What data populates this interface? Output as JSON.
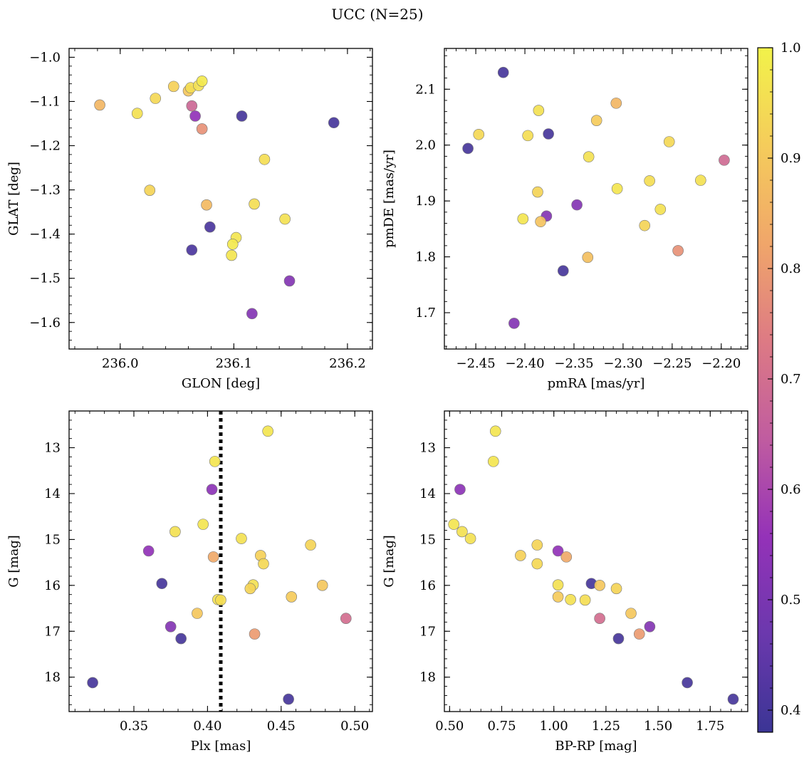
{
  "suptitle": "UCC (N=25)",
  "colorbar": {
    "range": [
      0.38,
      1.0
    ],
    "ticks": [
      0.4,
      0.5,
      0.6,
      0.7,
      0.8,
      0.9,
      1.0
    ],
    "tick_labels": [
      "0.4",
      "0.5",
      "0.6",
      "0.7",
      "0.8",
      "0.9",
      "1.0"
    ],
    "colormap": "plasma-like",
    "stops": [
      "#3b3595",
      "#6b38ad",
      "#9432b8",
      "#c05ca0",
      "#dd7a84",
      "#f0a66a",
      "#f5cc5b",
      "#f2f24a"
    ]
  },
  "chart_data": [
    {
      "type": "scatter",
      "id": "glon-glat",
      "xlabel": "GLON [deg]",
      "ylabel": "GLAT [deg]",
      "xlim": [
        235.955,
        236.222
      ],
      "ylim": [
        -1.66,
        -0.98
      ],
      "xticks": [
        236.0,
        236.1,
        236.2
      ],
      "xtick_labels": [
        "236.0",
        "236.1",
        "236.2"
      ],
      "yticks": [
        -1.0,
        -1.1,
        -1.2,
        -1.3,
        -1.4,
        -1.5,
        -1.6
      ],
      "ytick_labels": [
        "−1.0",
        "−1.1",
        "−1.2",
        "−1.3",
        "−1.4",
        "−1.5",
        "−1.6"
      ],
      "points": [
        {
          "x": 235.982,
          "y": -1.108,
          "c": 0.86
        },
        {
          "x": 236.015,
          "y": -1.127,
          "c": 0.96
        },
        {
          "x": 236.031,
          "y": -1.093,
          "c": 0.94
        },
        {
          "x": 236.047,
          "y": -1.066,
          "c": 0.92
        },
        {
          "x": 236.06,
          "y": -1.076,
          "c": 0.9
        },
        {
          "x": 236.062,
          "y": -1.069,
          "c": 0.95
        },
        {
          "x": 236.069,
          "y": -1.064,
          "c": 0.96
        },
        {
          "x": 236.072,
          "y": -1.054,
          "c": 0.98
        },
        {
          "x": 236.063,
          "y": -1.11,
          "c": 0.68
        },
        {
          "x": 236.066,
          "y": -1.133,
          "c": 0.55
        },
        {
          "x": 236.072,
          "y": -1.162,
          "c": 0.78
        },
        {
          "x": 236.107,
          "y": -1.133,
          "c": 0.4
        },
        {
          "x": 236.188,
          "y": -1.148,
          "c": 0.4
        },
        {
          "x": 236.127,
          "y": -1.231,
          "c": 0.95
        },
        {
          "x": 236.026,
          "y": -1.301,
          "c": 0.93
        },
        {
          "x": 236.076,
          "y": -1.334,
          "c": 0.87
        },
        {
          "x": 236.118,
          "y": -1.332,
          "c": 0.95
        },
        {
          "x": 236.145,
          "y": -1.366,
          "c": 0.96
        },
        {
          "x": 236.079,
          "y": -1.384,
          "c": 0.41
        },
        {
          "x": 236.063,
          "y": -1.436,
          "c": 0.41
        },
        {
          "x": 236.102,
          "y": -1.408,
          "c": 0.97
        },
        {
          "x": 236.099,
          "y": -1.423,
          "c": 0.98
        },
        {
          "x": 236.098,
          "y": -1.448,
          "c": 0.97
        },
        {
          "x": 236.149,
          "y": -1.506,
          "c": 0.52
        },
        {
          "x": 236.116,
          "y": -1.58,
          "c": 0.52
        }
      ]
    },
    {
      "type": "scatter",
      "id": "pmra-pmde",
      "xlabel": "pmRA [mas/yr]",
      "ylabel": "pmDE [mas/yr]",
      "xlim": [
        -2.482,
        -2.173
      ],
      "ylim": [
        1.635,
        2.173
      ],
      "xticks": [
        -2.45,
        -2.4,
        -2.35,
        -2.3,
        -2.25,
        -2.2
      ],
      "xtick_labels": [
        "−2.45",
        "−2.40",
        "−2.35",
        "−2.30",
        "−2.25",
        "−2.20"
      ],
      "yticks": [
        1.7,
        1.8,
        1.9,
        2.0,
        2.1
      ],
      "ytick_labels": [
        "1.7",
        "1.8",
        "1.9",
        "2.0",
        "2.1"
      ],
      "points": [
        {
          "x": -2.422,
          "y": 2.13,
          "c": 0.4
        },
        {
          "x": -2.307,
          "y": 2.075,
          "c": 0.86
        },
        {
          "x": -2.386,
          "y": 2.062,
          "c": 0.96
        },
        {
          "x": -2.327,
          "y": 2.044,
          "c": 0.91
        },
        {
          "x": -2.447,
          "y": 2.019,
          "c": 0.94
        },
        {
          "x": -2.397,
          "y": 2.017,
          "c": 0.95
        },
        {
          "x": -2.376,
          "y": 2.02,
          "c": 0.4
        },
        {
          "x": -2.253,
          "y": 2.006,
          "c": 0.94
        },
        {
          "x": -2.458,
          "y": 1.994,
          "c": 0.4
        },
        {
          "x": -2.335,
          "y": 1.979,
          "c": 0.96
        },
        {
          "x": -2.197,
          "y": 1.973,
          "c": 0.69
        },
        {
          "x": -2.221,
          "y": 1.937,
          "c": 0.96
        },
        {
          "x": -2.273,
          "y": 1.936,
          "c": 0.95
        },
        {
          "x": -2.306,
          "y": 1.922,
          "c": 0.97
        },
        {
          "x": -2.387,
          "y": 1.916,
          "c": 0.93
        },
        {
          "x": -2.347,
          "y": 1.893,
          "c": 0.52
        },
        {
          "x": -2.262,
          "y": 1.885,
          "c": 0.96
        },
        {
          "x": -2.378,
          "y": 1.873,
          "c": 0.52
        },
        {
          "x": -2.402,
          "y": 1.868,
          "c": 0.97
        },
        {
          "x": -2.384,
          "y": 1.863,
          "c": 0.89
        },
        {
          "x": -2.278,
          "y": 1.856,
          "c": 0.93
        },
        {
          "x": -2.244,
          "y": 1.811,
          "c": 0.78
        },
        {
          "x": -2.336,
          "y": 1.799,
          "c": 0.88
        },
        {
          "x": -2.361,
          "y": 1.775,
          "c": 0.4
        },
        {
          "x": -2.411,
          "y": 1.681,
          "c": 0.52
        }
      ]
    },
    {
      "type": "scatter",
      "id": "plx-g",
      "xlabel": "Plx [mas]",
      "ylabel": "G [mag]",
      "xlim": [
        0.306,
        0.512
      ],
      "ylim": [
        18.75,
        12.2
      ],
      "y_inverted": true,
      "xticks": [
        0.35,
        0.4,
        0.45,
        0.5
      ],
      "xtick_labels": [
        "0.35",
        "0.40",
        "0.45",
        "0.50"
      ],
      "yticks": [
        13,
        14,
        15,
        16,
        17,
        18
      ],
      "ytick_labels": [
        "13",
        "14",
        "15",
        "16",
        "17",
        "18"
      ],
      "vline": {
        "x": 0.409,
        "style": "dotted"
      },
      "points": [
        {
          "x": 0.441,
          "y": 12.64,
          "c": 0.97
        },
        {
          "x": 0.405,
          "y": 13.3,
          "c": 0.97
        },
        {
          "x": 0.403,
          "y": 13.91,
          "c": 0.54
        },
        {
          "x": 0.397,
          "y": 14.67,
          "c": 0.97
        },
        {
          "x": 0.378,
          "y": 14.83,
          "c": 0.96
        },
        {
          "x": 0.423,
          "y": 14.98,
          "c": 0.96
        },
        {
          "x": 0.47,
          "y": 15.12,
          "c": 0.93
        },
        {
          "x": 0.36,
          "y": 15.25,
          "c": 0.55
        },
        {
          "x": 0.436,
          "y": 15.35,
          "c": 0.92
        },
        {
          "x": 0.404,
          "y": 15.38,
          "c": 0.83
        },
        {
          "x": 0.438,
          "y": 15.53,
          "c": 0.94
        },
        {
          "x": 0.369,
          "y": 15.96,
          "c": 0.4
        },
        {
          "x": 0.478,
          "y": 16.0,
          "c": 0.9
        },
        {
          "x": 0.431,
          "y": 15.99,
          "c": 0.96
        },
        {
          "x": 0.429,
          "y": 16.07,
          "c": 0.93
        },
        {
          "x": 0.457,
          "y": 16.25,
          "c": 0.91
        },
        {
          "x": 0.407,
          "y": 16.31,
          "c": 0.96
        },
        {
          "x": 0.409,
          "y": 16.32,
          "c": 0.95
        },
        {
          "x": 0.393,
          "y": 16.61,
          "c": 0.9
        },
        {
          "x": 0.494,
          "y": 16.72,
          "c": 0.7
        },
        {
          "x": 0.375,
          "y": 16.9,
          "c": 0.52
        },
        {
          "x": 0.432,
          "y": 17.06,
          "c": 0.8
        },
        {
          "x": 0.382,
          "y": 17.16,
          "c": 0.4
        },
        {
          "x": 0.322,
          "y": 18.12,
          "c": 0.4
        },
        {
          "x": 0.455,
          "y": 18.48,
          "c": 0.4
        }
      ]
    },
    {
      "type": "scatter",
      "id": "bprp-g",
      "xlabel": "BP-RP [mag]",
      "ylabel": "G [mag]",
      "xlim": [
        0.475,
        1.93
      ],
      "ylim": [
        18.75,
        12.2
      ],
      "y_inverted": true,
      "xticks": [
        0.5,
        0.75,
        1.0,
        1.25,
        1.5,
        1.75
      ],
      "xtick_labels": [
        "0.50",
        "0.75",
        "1.00",
        "1.25",
        "1.50",
        "1.75"
      ],
      "yticks": [
        13,
        14,
        15,
        16,
        17,
        18
      ],
      "ytick_labels": [
        "13",
        "14",
        "15",
        "16",
        "17",
        "18"
      ],
      "points": [
        {
          "x": 0.72,
          "y": 12.64,
          "c": 0.97
        },
        {
          "x": 0.71,
          "y": 13.3,
          "c": 0.97
        },
        {
          "x": 0.55,
          "y": 13.91,
          "c": 0.54
        },
        {
          "x": 0.52,
          "y": 14.67,
          "c": 0.97
        },
        {
          "x": 0.56,
          "y": 14.83,
          "c": 0.96
        },
        {
          "x": 0.6,
          "y": 14.98,
          "c": 0.96
        },
        {
          "x": 0.92,
          "y": 15.12,
          "c": 0.93
        },
        {
          "x": 1.02,
          "y": 15.25,
          "c": 0.55
        },
        {
          "x": 0.84,
          "y": 15.35,
          "c": 0.92
        },
        {
          "x": 1.06,
          "y": 15.38,
          "c": 0.83
        },
        {
          "x": 0.92,
          "y": 15.53,
          "c": 0.94
        },
        {
          "x": 1.18,
          "y": 15.96,
          "c": 0.4
        },
        {
          "x": 1.22,
          "y": 16.0,
          "c": 0.9
        },
        {
          "x": 1.02,
          "y": 15.99,
          "c": 0.96
        },
        {
          "x": 1.3,
          "y": 16.07,
          "c": 0.93
        },
        {
          "x": 1.02,
          "y": 16.25,
          "c": 0.91
        },
        {
          "x": 1.08,
          "y": 16.31,
          "c": 0.96
        },
        {
          "x": 1.15,
          "y": 16.32,
          "c": 0.95
        },
        {
          "x": 1.37,
          "y": 16.61,
          "c": 0.9
        },
        {
          "x": 1.22,
          "y": 16.72,
          "c": 0.7
        },
        {
          "x": 1.46,
          "y": 16.9,
          "c": 0.52
        },
        {
          "x": 1.41,
          "y": 17.06,
          "c": 0.8
        },
        {
          "x": 1.31,
          "y": 17.16,
          "c": 0.4
        },
        {
          "x": 1.64,
          "y": 18.12,
          "c": 0.4
        },
        {
          "x": 1.86,
          "y": 18.48,
          "c": 0.4
        }
      ]
    }
  ]
}
